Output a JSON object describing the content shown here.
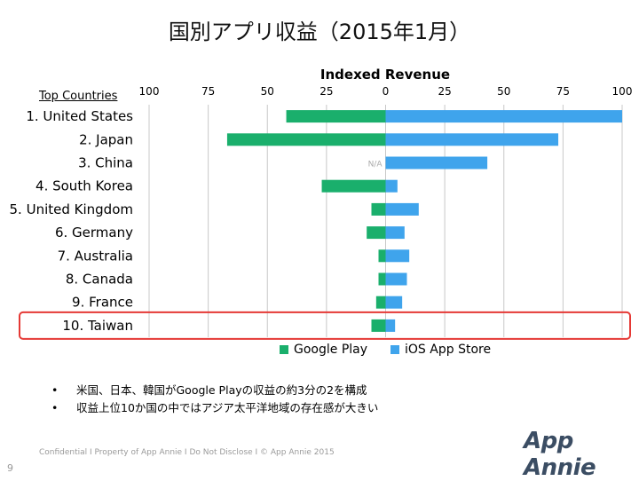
{
  "slide": {
    "title": "国別アプリ収益（2015年1月）",
    "bullets": [
      "米国、日本、韓国がGoogle Playの収益の約3分の2を構成",
      "収益上位10か国の中ではアジア太平洋地域の存在感が大きい"
    ],
    "bullet_marker": "•",
    "footer": "Confidential  I  Property of App Annie  I  Do Not Disclose  I  © App Annie 2015",
    "page_number": "9",
    "logo_text": "App Annie",
    "na_label": "N/A"
  },
  "chart_data": {
    "type": "bar",
    "orientation": "horizontal-butterfly",
    "title": "Indexed Revenue",
    "category_header": "Top Countries",
    "categories": [
      "1. United States",
      "2. Japan",
      "3. China",
      "4. South Korea",
      "5. United Kingdom",
      "6. Germany",
      "7. Australia",
      "8. Canada",
      "9. France",
      "10. Taiwan"
    ],
    "tick_labels": [
      "100",
      "75",
      "50",
      "25",
      "0",
      "25",
      "50",
      "75",
      "100"
    ],
    "xlim": [
      -100,
      100
    ],
    "grid": true,
    "legend_position": "bottom",
    "highlighted_category": "10. Taiwan",
    "series": [
      {
        "name": "Google Play",
        "color": "#1aaf6c",
        "direction": "left",
        "values": [
          42,
          67,
          null,
          27,
          6,
          8,
          3,
          3,
          4,
          6
        ]
      },
      {
        "name": "iOS App Store",
        "color": "#3fa4ec",
        "direction": "right",
        "values": [
          100,
          73,
          43,
          5,
          14,
          8,
          10,
          9,
          7,
          4
        ]
      }
    ],
    "highlight_color": "#e53935"
  }
}
